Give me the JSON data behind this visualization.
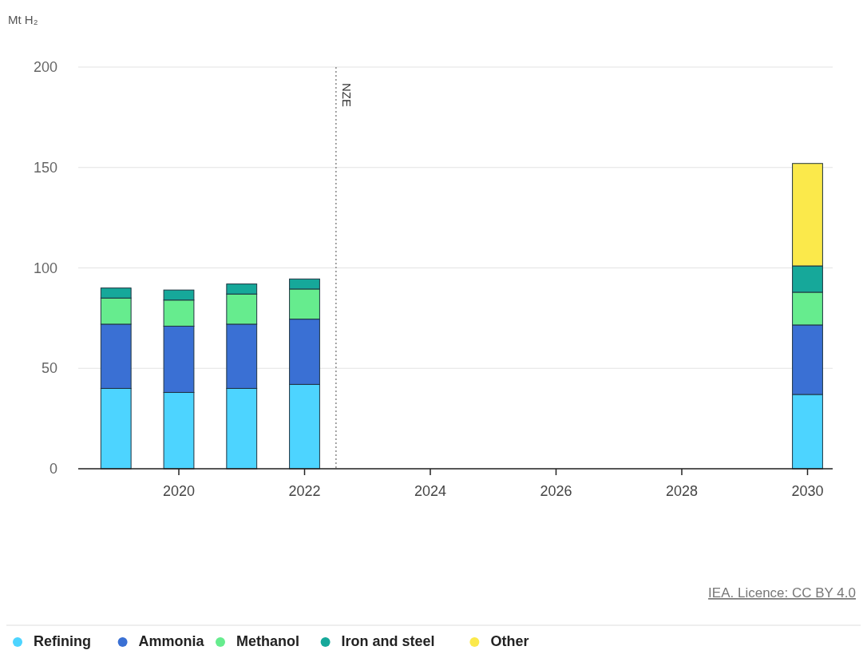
{
  "chart_data": {
    "type": "bar",
    "stacked": true,
    "ylabel": "Mt H₂",
    "x": [
      2019,
      2020,
      2021,
      2022,
      2030
    ],
    "series": [
      {
        "name": "Refining",
        "color": "#4dd4ff",
        "values": [
          40,
          38,
          40,
          42,
          37
        ]
      },
      {
        "name": "Ammonia",
        "color": "#3a70d4",
        "values": [
          32,
          33,
          32,
          32.5,
          34.6
        ]
      },
      {
        "name": "Methanol",
        "color": "#66ec8e",
        "values": [
          13,
          13,
          15,
          15,
          16.3
        ]
      },
      {
        "name": "Iron and steel",
        "color": "#16a89a",
        "values": [
          5,
          5,
          5,
          5,
          13.1
        ]
      },
      {
        "name": "Other",
        "color": "#fbe94b",
        "values": [
          null,
          null,
          null,
          null,
          51
        ]
      }
    ],
    "xlim": [
      2018.4,
      2030.4
    ],
    "xticks": [
      2020,
      2022,
      2024,
      2026,
      2028,
      2030
    ],
    "ylim": [
      0,
      200
    ],
    "yticks": [
      0,
      50,
      100,
      150,
      200
    ],
    "grid": "y",
    "legend": "bottom",
    "ref_lines": [
      {
        "axis": "x",
        "value": 2022.5,
        "label": "NZE",
        "line_style": "dotted"
      }
    ],
    "annotations": [
      "IEA. Licence: CC BY 4.0"
    ]
  }
}
